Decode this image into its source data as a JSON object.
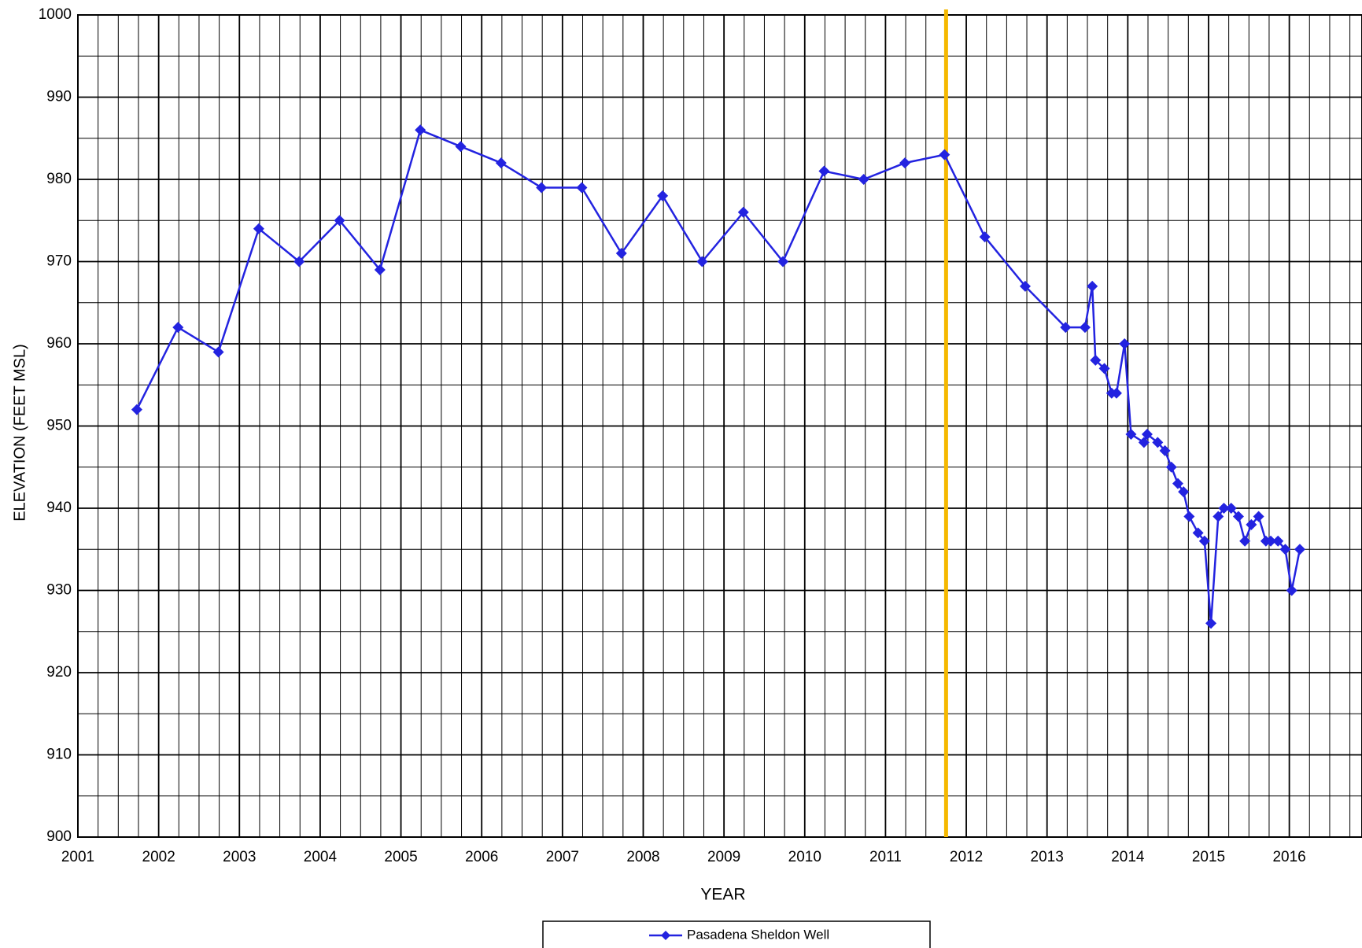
{
  "chart_data": {
    "type": "line",
    "x_label": "YEAR",
    "y_label": "ELEVATION (FEET MSL)",
    "xlim": [
      2001,
      2016.9
    ],
    "ylim": [
      900,
      1000
    ],
    "xticks": [
      2001,
      2002,
      2003,
      2004,
      2005,
      2006,
      2007,
      2008,
      2009,
      2010,
      2011,
      2012,
      2013,
      2014,
      2015,
      2016
    ],
    "yticks": [
      900,
      910,
      920,
      930,
      940,
      950,
      960,
      970,
      980,
      990,
      1000
    ],
    "grid": true,
    "minor_grid": {
      "x": 0.25,
      "y": 5
    },
    "legend": "bottom",
    "reference_line": {
      "x": 2011.75,
      "color": "#f5b800"
    },
    "series": [
      {
        "name": "Pasadena Sheldon Well",
        "color": "#2323e0",
        "x": [
          2001.73,
          2002.24,
          2002.74,
          2003.24,
          2003.74,
          2004.24,
          2004.74,
          2005.24,
          2005.74,
          2006.24,
          2006.74,
          2007.24,
          2007.73,
          2008.24,
          2008.73,
          2009.24,
          2009.73,
          2010.24,
          2010.73,
          2011.24,
          2011.73,
          2012.23,
          2012.73,
          2013.23,
          2013.47,
          2013.56,
          2013.6,
          2013.71,
          2013.8,
          2013.86,
          2013.96,
          2014.04,
          2014.2,
          2014.24,
          2014.37,
          2014.46,
          2014.54,
          2014.62,
          2014.69,
          2014.76,
          2014.87,
          2014.95,
          2015.03,
          2015.12,
          2015.19,
          2015.28,
          2015.37,
          2015.45,
          2015.53,
          2015.62,
          2015.71,
          2015.77,
          2015.86,
          2015.95,
          2016.03,
          2016.13
        ],
        "values": [
          952,
          962,
          959,
          974,
          970,
          975,
          969,
          986,
          984,
          982,
          979,
          979,
          971,
          978,
          970,
          976,
          970,
          981,
          980,
          982,
          983,
          973,
          967,
          962,
          962,
          967,
          958,
          957,
          954,
          954,
          960,
          949,
          948,
          949,
          948,
          947,
          945,
          943,
          942,
          939,
          937,
          936,
          926,
          939,
          940,
          940,
          939,
          936,
          938,
          939,
          936,
          936,
          936,
          935,
          930,
          935
        ]
      }
    ]
  }
}
